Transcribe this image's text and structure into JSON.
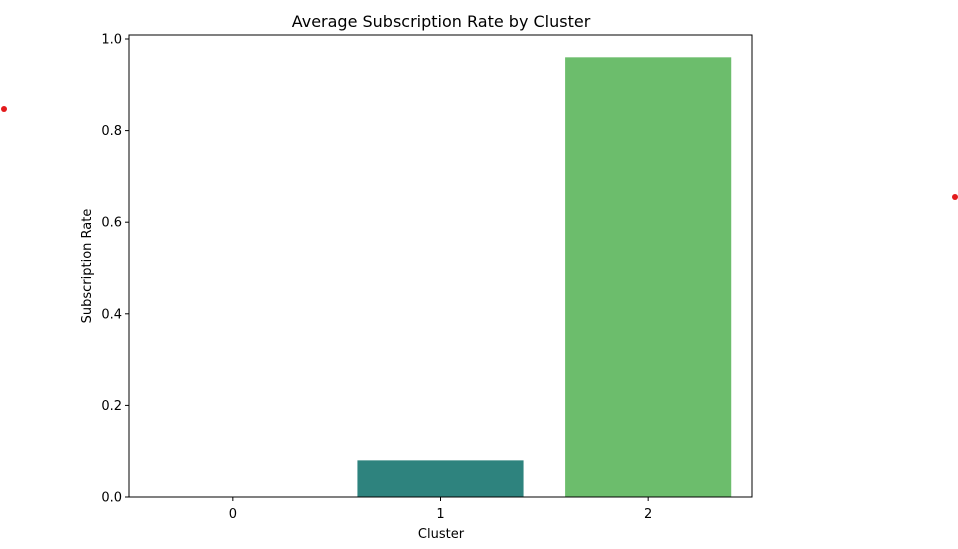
{
  "chart_data": {
    "type": "bar",
    "title": "Average Subscription Rate by Cluster",
    "xlabel": "Cluster",
    "ylabel": "Subscription Rate",
    "categories": [
      "0",
      "1",
      "2"
    ],
    "values": [
      0.0,
      0.08,
      0.96
    ],
    "ylim": [
      0,
      1.0
    ],
    "yticks": [
      "0.0",
      "0.2",
      "0.4",
      "0.6",
      "0.8",
      "1.0"
    ],
    "bar_colors": [
      "#440154",
      "#2e837e",
      "#6cbd6c"
    ],
    "grid": false,
    "legend": "none"
  },
  "marker_color": "#e31a1c"
}
